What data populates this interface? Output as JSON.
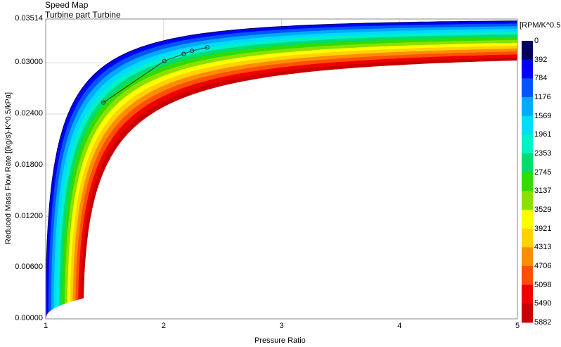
{
  "chart_data": {
    "type": "area",
    "title": "Speed Map",
    "subtitle": "Turbine part Turbine",
    "xlabel": "Pressure Ratio",
    "ylabel": "Reduced Mass Flow Rate [(kg/s)-K^0.5/kPa]",
    "xlim": [
      1,
      5
    ],
    "ylim": [
      0,
      0.03514
    ],
    "x_ticks": [
      "1",
      "2",
      "3",
      "4",
      "5"
    ],
    "y_ticks": [
      "0.00000",
      "0.00600",
      "0.01200",
      "0.01800",
      "0.02400",
      "0.03000",
      "0.03514"
    ],
    "y_tick_values": [
      0,
      0.006,
      0.012,
      0.018,
      0.024,
      0.03,
      0.03514
    ],
    "grid": true,
    "colorbar": {
      "title": "[RPM/K^0.5",
      "levels": [
        "0",
        "392",
        "784",
        "1176",
        "1569",
        "1961",
        "2353",
        "2745",
        "3137",
        "3529",
        "3921",
        "4313",
        "4706",
        "5098",
        "5490",
        "5882"
      ],
      "colors": [
        "#00005e",
        "#0000f5",
        "#0055ff",
        "#00aaff",
        "#00dcff",
        "#00f0c8",
        "#00dc6e",
        "#32dc00",
        "#8ce000",
        "#ffff00",
        "#ffd200",
        "#ff8c00",
        "#ff5000",
        "#ee0000",
        "#c80000"
      ],
      "placement": "right"
    },
    "operating_line": {
      "x": [
        1.49,
        2.006,
        2.17,
        2.24,
        2.37
      ],
      "y": [
        0.02535,
        0.03022,
        0.03105,
        0.03141,
        0.03182
      ]
    }
  }
}
